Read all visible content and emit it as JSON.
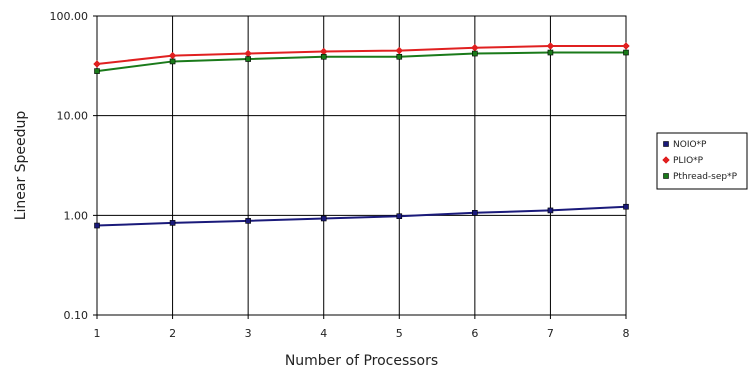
{
  "chart_data": {
    "type": "line",
    "title": "",
    "xlabel": "Number of Processors",
    "ylabel": "Linear Speedup",
    "yscale": "log",
    "ylim": [
      0.1,
      100
    ],
    "xlim": [
      1,
      8
    ],
    "grid": true,
    "legend_position": "right",
    "x": [
      1,
      2,
      3,
      4,
      5,
      6,
      7,
      8
    ],
    "x_tick_labels": [
      "1",
      "2",
      "3",
      "4",
      "5",
      "6",
      "7",
      "8"
    ],
    "y_ticks": [
      0.1,
      1,
      10,
      100
    ],
    "y_tick_labels": [
      "0.10",
      "1.00",
      "10.00",
      "100.00"
    ],
    "series": [
      {
        "name": "NOIO*P",
        "color": "#1a1a7a",
        "marker": "square",
        "values": [
          0.79,
          0.84,
          0.88,
          0.93,
          0.98,
          1.06,
          1.12,
          1.22
        ]
      },
      {
        "name": "PLIO*P",
        "color": "#e02020",
        "marker": "diamond",
        "values": [
          33,
          40,
          42,
          44,
          45,
          48,
          50,
          50
        ]
      },
      {
        "name": "Pthread-sep*P",
        "color": "#1a7a1a",
        "marker": "square",
        "values": [
          28,
          35,
          37,
          39,
          39,
          42,
          43,
          43
        ]
      }
    ]
  }
}
